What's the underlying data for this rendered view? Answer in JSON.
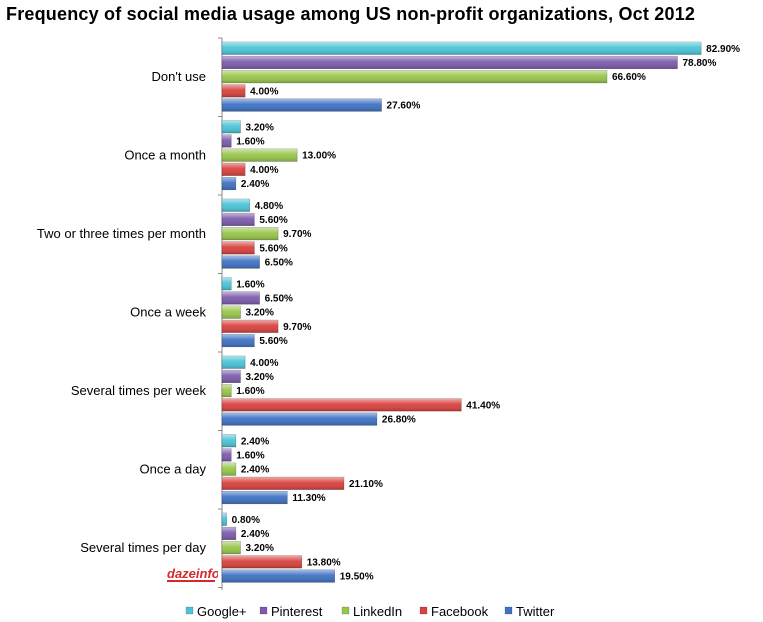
{
  "chart_data": {
    "type": "bar",
    "orientation": "horizontal",
    "title": "Frequency of social media usage among US non-profit organizations, Oct 2012",
    "categories": [
      "Don't use",
      "Once a month",
      "Two or three times per month",
      "Once a week",
      "Several times per week",
      "Once a day",
      "Several times per day"
    ],
    "series": [
      {
        "name": "Google+",
        "color": "#4bc4d8",
        "values": [
          82.9,
          3.2,
          4.8,
          1.6,
          4.0,
          2.4,
          0.8
        ]
      },
      {
        "name": "Pinterest",
        "color": "#7d5bac",
        "values": [
          78.8,
          1.6,
          5.6,
          6.5,
          3.2,
          1.6,
          2.4
        ]
      },
      {
        "name": "LinkedIn",
        "color": "#98c64a",
        "values": [
          66.6,
          13.0,
          9.7,
          3.2,
          1.6,
          2.4,
          3.2
        ]
      },
      {
        "name": "Facebook",
        "color": "#d9423f",
        "values": [
          4.0,
          4.0,
          5.6,
          9.7,
          41.4,
          21.1,
          13.8
        ]
      },
      {
        "name": "Twitter",
        "color": "#3f72c4",
        "values": [
          27.6,
          2.4,
          6.5,
          5.6,
          26.8,
          11.3,
          19.5
        ]
      }
    ],
    "value_suffix": "%",
    "xlim": [
      0,
      100
    ],
    "grid": false,
    "legend_position": "bottom"
  },
  "logo": {
    "name": "dazeinfo-logo",
    "text": "dazeinfo"
  }
}
